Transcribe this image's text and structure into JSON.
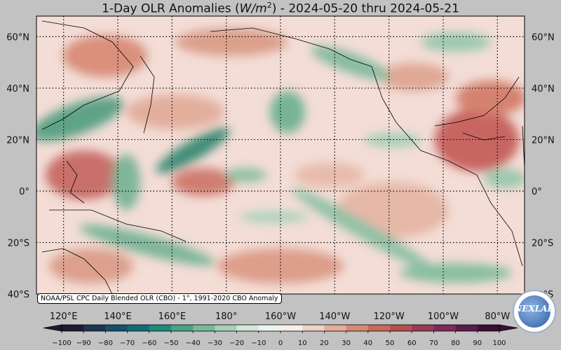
{
  "title": {
    "prefix": "1-Day OLR Anomalies (",
    "unit_base": "W/m",
    "unit_exp": "2",
    "suffix": ") - 2024-05-20 thru 2024-05-21"
  },
  "map": {
    "lat_labels": [
      "60°N",
      "40°N",
      "20°N",
      "0°",
      "20°S",
      "40°S"
    ],
    "lon_labels": [
      "120°E",
      "140°E",
      "160°E",
      "180°",
      "160°W",
      "140°W",
      "120°W",
      "100°W",
      "80°W"
    ],
    "lat_values": [
      60,
      40,
      20,
      0,
      -20,
      -40
    ],
    "lon_values": [
      120,
      140,
      160,
      180,
      200,
      220,
      240,
      260,
      280
    ],
    "extent": {
      "lon_min": 110,
      "lon_max": 290,
      "lat_min": -40,
      "lat_max": 68
    },
    "gridline_style": "dotted",
    "projection": "equirectangular"
  },
  "colorbar": {
    "ticks": [
      "−100",
      "−90",
      "−80",
      "−70",
      "−60",
      "−50",
      "−40",
      "−30",
      "−20",
      "−10",
      "0",
      "10",
      "20",
      "30",
      "40",
      "50",
      "60",
      "70",
      "80",
      "90",
      "100"
    ],
    "min": -100,
    "max": 100,
    "colors": [
      "#1f1a33",
      "#1d3550",
      "#15506a",
      "#136c74",
      "#1f8a7a",
      "#4aa287",
      "#79b99b",
      "#a8d1b7",
      "#d2e6da",
      "#f0f4f0",
      "#faeeea",
      "#f0d2c6",
      "#e4ae9c",
      "#d68a75",
      "#c66b5c",
      "#b44f50",
      "#9a3a55",
      "#7c2a58",
      "#5a1c4e",
      "#3a1034"
    ]
  },
  "source_note": "NOAA/PSL CPC Daily Blended OLR (CBO) - 1°, 1991-2020 CBO Anomaly",
  "logo": {
    "text": "NEXLAB"
  }
}
